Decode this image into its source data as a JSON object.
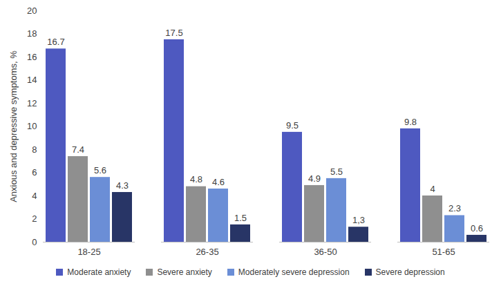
{
  "chart_data": {
    "type": "bar",
    "y_label": "Anxious and depressive symptoms, %",
    "categories": [
      "18-25",
      "26-35",
      "36-50",
      "51-65"
    ],
    "series": [
      {
        "name": "Moderate anxiety",
        "color": "#4e59c0",
        "values": [
          16.7,
          17.5,
          9.5,
          9.8
        ]
      },
      {
        "name": "Severe anxiety",
        "color": "#8f8f8f",
        "values": [
          7.4,
          4.8,
          4.9,
          4
        ]
      },
      {
        "name": "Moderately severe depression",
        "color": "#6b8ed6",
        "values": [
          5.6,
          4.6,
          5.5,
          2.3
        ]
      },
      {
        "name": "Severe depression",
        "color": "#283566",
        "values": [
          4.3,
          1.5,
          1.3,
          0.6
        ],
        "value_labels": [
          "4.3",
          "1.5",
          "1,3",
          "0.6"
        ]
      }
    ],
    "ylim": [
      0,
      20
    ],
    "yticks": [
      0,
      2,
      4,
      6,
      8,
      10,
      12,
      14,
      16,
      18,
      20
    ],
    "grid": false,
    "legend": "bottom",
    "data_labels": true
  }
}
